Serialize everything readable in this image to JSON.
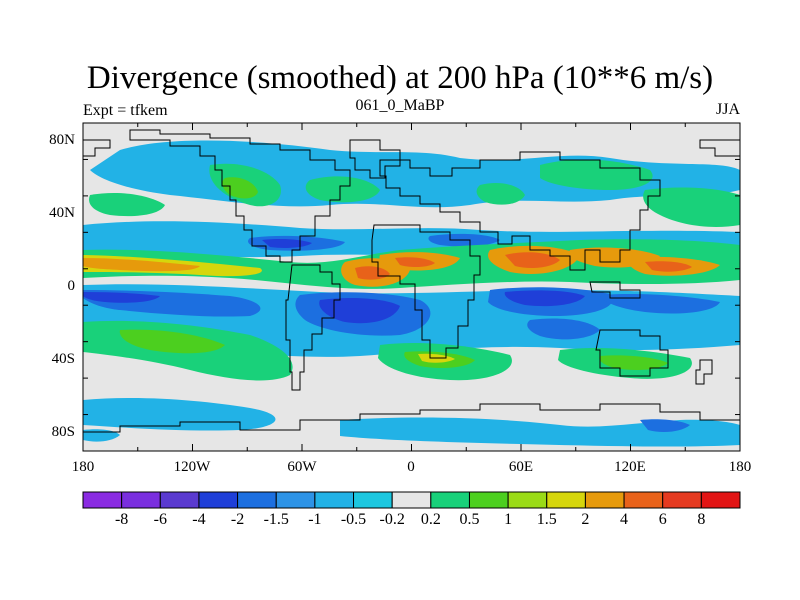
{
  "title": "Divergence (smoothed) at 200 hPa (10**6 m/s)",
  "left_string": "Expt = tfkem",
  "center_string": "061_0_MaBP",
  "right_string": "JJA",
  "lat_labels": [
    "80N",
    "40N",
    "0",
    "40S",
    "80S"
  ],
  "lon_labels": [
    "180",
    "120W",
    "60W",
    "0",
    "60E",
    "120E",
    "180"
  ],
  "colorbar": {
    "labels": [
      "-8",
      "-6",
      "-4",
      "-2",
      "-1.5",
      "-1",
      "-0.5",
      "-0.2",
      "0.2",
      "0.5",
      "1",
      "1.5",
      "2",
      "4",
      "6",
      "8"
    ],
    "colors": [
      "#8a2be2",
      "#7a2fdf",
      "#5a3ad0",
      "#1f3fd8",
      "#1c6fe0",
      "#2d93e6",
      "#22b2e6",
      "#1cc7e0",
      "#e6e6e6",
      "#19d17a",
      "#4ccf1f",
      "#9adb17",
      "#d6d60c",
      "#e69a0c",
      "#e8621a",
      "#e53a20",
      "#e21414"
    ]
  },
  "map_colors": {
    "neg_strong": "#1f3fd8",
    "neg_mid": "#1c6fe0",
    "neg_weak": "#22b2e6",
    "neutral": "#e6e6e6",
    "pos_weak": "#19d17a",
    "pos_mid": "#4ccf1f",
    "pos_strong": "#e69a0c",
    "pos_max": "#e8621a"
  }
}
